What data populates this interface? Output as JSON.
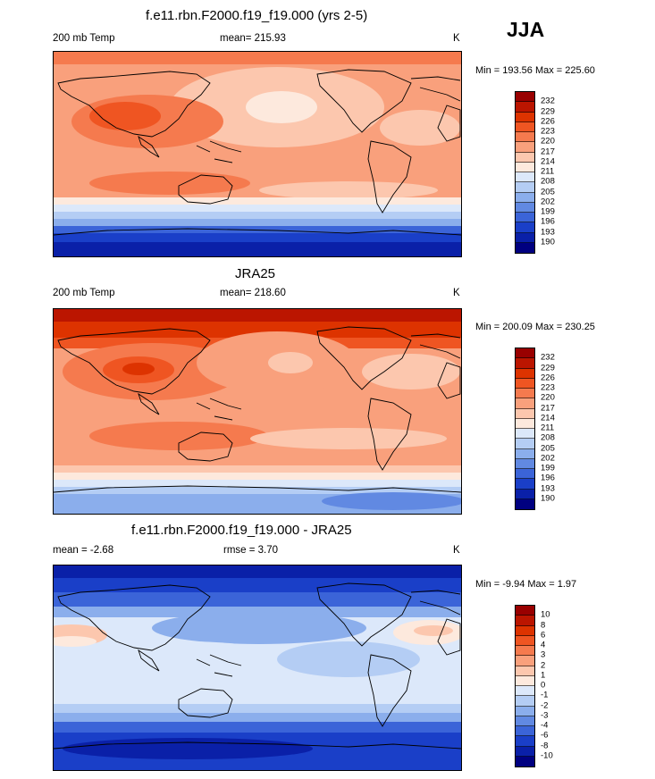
{
  "season": "JJA",
  "panels": [
    {
      "title": "f.e11.rbn.F2000.f19_f19.000 (yrs 2-5)",
      "left_label": "200 mb Temp",
      "center_label": "mean= 215.93",
      "units": "K",
      "minmax": "Min = 193.56 Max = 225.60",
      "colorbar_labels": [
        "232",
        "229",
        "226",
        "223",
        "220",
        "217",
        "214",
        "211",
        "208",
        "205",
        "202",
        "199",
        "196",
        "193",
        "190"
      ]
    },
    {
      "title": "JRA25",
      "left_label": "200 mb Temp",
      "center_label": "mean= 218.60",
      "units": "K",
      "minmax": "Min = 200.09 Max = 230.25",
      "colorbar_labels": [
        "232",
        "229",
        "226",
        "223",
        "220",
        "217",
        "214",
        "211",
        "208",
        "205",
        "202",
        "199",
        "196",
        "193",
        "190"
      ]
    },
    {
      "title": "f.e11.rbn.F2000.f19_f19.000 - JRA25",
      "left_label": "mean =  -2.68",
      "center_label": "rmse =   3.70",
      "units": "K",
      "minmax": "Min =  -9.94 Max =   1.97",
      "colorbar_labels": [
        "10",
        "8",
        "6",
        "4",
        "3",
        "2",
        "1",
        "0",
        "-1",
        "-2",
        "-3",
        "-4",
        "-6",
        "-8",
        "-10"
      ]
    }
  ],
  "colors": {
    "temp_scale": [
      "#990000",
      "#bb1500",
      "#dd3300",
      "#ef5522",
      "#f57a4e",
      "#f9a07c",
      "#fcc7ae",
      "#fde9dd",
      "#dce8fa",
      "#b4cdf4",
      "#8baeec",
      "#6189e2",
      "#3b64d8",
      "#1a3fc8",
      "#0a20a8",
      "#000080"
    ],
    "coast": "#000000"
  }
}
